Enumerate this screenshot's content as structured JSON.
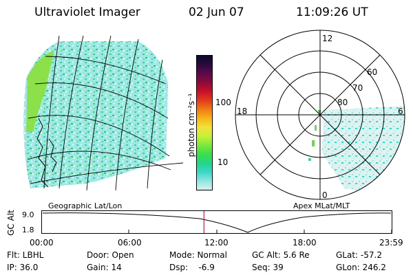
{
  "header": {
    "title": "Ultraviolet Imager",
    "date": "02 Jun 07",
    "time": "11:09:26 UT"
  },
  "colorbar": {
    "label": "photon cm⁻²s⁻¹",
    "ticks": [
      "100",
      "10"
    ],
    "colors": [
      "#0a0a2a",
      "#2b0a3d",
      "#5a0a4a",
      "#8c0a3a",
      "#c8102a",
      "#e03b1b",
      "#f07a14",
      "#f6b41a",
      "#f2e23a",
      "#c8f03a",
      "#7ee83c",
      "#3ede4a",
      "#22d68a",
      "#3ad6c8",
      "#8ee6e0",
      "#d8f0f0"
    ]
  },
  "left_map": {
    "label": "Geographic Lat/Lon"
  },
  "polar_plot": {
    "label": "Apex  MLat/MLT",
    "mlt_labels": {
      "top": "12",
      "left": "18",
      "right": "6",
      "bottom": "0"
    },
    "lat_labels": [
      "60",
      "70",
      "80"
    ]
  },
  "altitude_plot": {
    "ylabel": "GC Alt",
    "ytick_top": "9.0",
    "ytick_bottom": "1.8",
    "xticks": [
      "00:00",
      "06:00",
      "12:00",
      "18:00",
      "23:59"
    ],
    "current_time_fraction": 0.464
  },
  "info": {
    "filter": "Flt: LBHL",
    "ip": "IP: 36.0",
    "door": "Door: Open",
    "gain": "Gain: 14",
    "mode": "Mode: Normal",
    "dsp": "Dsp:    -6.9",
    "gc_alt": "GC Alt: 5.6 Re",
    "seq": "Seq: 39",
    "glat": "GLat: -57.2",
    "glon": "GLon: 246.2"
  }
}
